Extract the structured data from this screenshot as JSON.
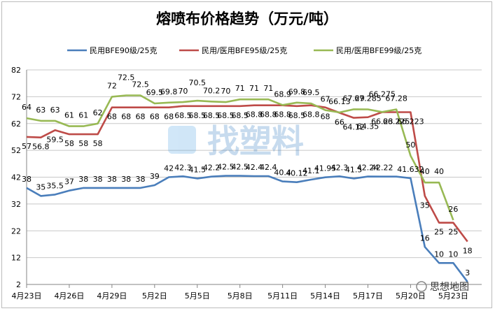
{
  "chart_data": {
    "type": "line",
    "title": "熔喷布价格趋势（万元/吨）",
    "xlabel": "",
    "ylabel": "",
    "ylim": [
      2,
      82
    ],
    "yticks": [
      2,
      12,
      22,
      32,
      42,
      52,
      62,
      72,
      82
    ],
    "grid": true,
    "legend_position": "top",
    "x_tick_labels": [
      "4月23日",
      "4月26日",
      "4月29日",
      "5月2日",
      "5月5日",
      "5月8日",
      "5月11日",
      "5月14日",
      "5月17日",
      "5月20日",
      "5月23日"
    ],
    "x": [
      "4月23日",
      "4月24日",
      "4月25日",
      "4月26日",
      "4月27日",
      "4月28日",
      "4月29日",
      "4月30日",
      "5月1日",
      "5月2日",
      "5月3日",
      "5月4日",
      "5月5日",
      "5月6日",
      "5月7日",
      "5月8日",
      "5月9日",
      "5月10日",
      "5月11日",
      "5月12日",
      "5月13日",
      "5月14日",
      "5月15日",
      "5月16日",
      "5月17日",
      "5月18日",
      "5月19日",
      "5月20日",
      "5月21日",
      "5月22日",
      "5月23日",
      "5月24日",
      "5月25日"
    ],
    "series": [
      {
        "name": "民用BFE90级/25克",
        "color": "#4a7ebb",
        "values": [
          38,
          35,
          35.5,
          37,
          38,
          38,
          38,
          38,
          38,
          39,
          42,
          42.3,
          41.5,
          42.2,
          42.5,
          42.5,
          42.4,
          42.4,
          40.4,
          40.12,
          41.1,
          41.95,
          42.3,
          41.5,
          42.24,
          42.22,
          42.22,
          41.63,
          16,
          10,
          10,
          3,
          null
        ],
        "labels": [
          "38",
          "35",
          "35.5",
          "37",
          "38",
          "38",
          "38",
          "38",
          "38",
          "39",
          "42",
          "42.3",
          "41.5",
          "42.2",
          "42.5",
          "42.5",
          "42.4",
          "42.4",
          "40.4",
          "40.12",
          "41.1",
          "41.95",
          "42.3",
          "41.5",
          "42.24",
          "42.22",
          "",
          "41.632",
          "16",
          "10",
          "10",
          "3",
          ""
        ]
      },
      {
        "name": "民用/医用BFE95级/25克",
        "color": "#be4b48",
        "values": [
          57,
          56.8,
          59.5,
          58,
          58,
          58,
          68,
          68,
          68,
          68,
          68,
          68.5,
          68.5,
          68.5,
          68.5,
          68.5,
          68.8,
          68.8,
          68.8,
          68.5,
          68.8,
          68,
          66,
          64.12,
          64.35,
          66.23,
          66.225,
          66.223,
          35,
          25,
          25,
          18,
          null
        ],
        "labels": [
          "57",
          "56.8",
          "59.5",
          "58",
          "58",
          "58",
          "68",
          "68",
          "68",
          "68",
          "68",
          "68.5",
          "68.5",
          "68.5",
          "68.5",
          "68.5",
          "68.8",
          "68.8",
          "68.8",
          "68.5",
          "68.8",
          "68",
          "66",
          "64.12",
          "64.35",
          "66.23",
          "66.225",
          "66.223",
          "35",
          "25",
          "25",
          "18",
          ""
        ]
      },
      {
        "name": "民用/医用BFE99级/25克",
        "color": "#98b954",
        "values": [
          64,
          63,
          63,
          61,
          61,
          62,
          72,
          72.5,
          72.5,
          69.5,
          69.8,
          70,
          70.5,
          70.2,
          70,
          71,
          71,
          71,
          68.9,
          69.8,
          69.5,
          67,
          66.13,
          67.29,
          67.285,
          66.275,
          67.28,
          50,
          40,
          40,
          26,
          null,
          null
        ],
        "labels": [
          "64",
          "63",
          "63",
          "61",
          "61",
          "62",
          "72",
          "72.5",
          "72.5",
          "69.5",
          "69.8",
          "70",
          "70.5",
          "70.2",
          "70",
          "71",
          "71",
          "71",
          "68.9",
          "69.8",
          "69.5",
          "67",
          "66.13",
          "67.29",
          "67.285",
          "66.275",
          "67.28",
          "50",
          "40",
          "40",
          "26",
          "",
          ""
        ]
      }
    ]
  },
  "watermarks": [
    "找塑料",
    "思想地图"
  ]
}
